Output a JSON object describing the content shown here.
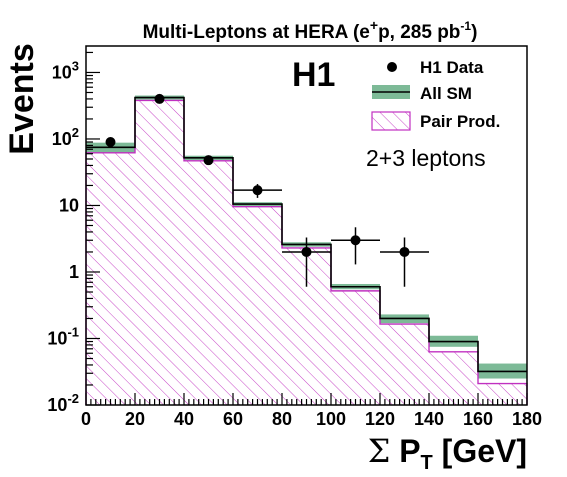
{
  "chart_data": {
    "type": "bar",
    "title_parts": {
      "main": "Multi-Leptons at HERA (e",
      "sup1": "+",
      "mid": "p, 285 pb",
      "sup2": "-1",
      "end": ")"
    },
    "experiment_label": "H1",
    "channel_label": "2+3 leptons",
    "ylabel": "Events",
    "xlabel_parts": {
      "sigma": "Σ",
      "p": "P",
      "sub": "T",
      "unit": " [GeV]"
    },
    "y_scale": "log",
    "ylim": [
      0.01,
      2500
    ],
    "xlim": [
      0,
      180
    ],
    "x_ticks": [
      "0",
      "20",
      "40",
      "60",
      "80",
      "100",
      "120",
      "140",
      "160",
      "180"
    ],
    "x_tick_values": [
      0,
      20,
      40,
      60,
      80,
      100,
      120,
      140,
      160,
      180
    ],
    "y_ticks": [
      {
        "value": 1000,
        "base": "10",
        "exp": "3"
      },
      {
        "value": 100,
        "base": "10",
        "exp": "2"
      },
      {
        "value": 10,
        "base": "10",
        "exp": ""
      },
      {
        "value": 1,
        "base": "1",
        "exp": ""
      },
      {
        "value": 0.1,
        "base": "10",
        "exp": "-1"
      },
      {
        "value": 0.01,
        "base": "10",
        "exp": "-2"
      }
    ],
    "bin_edges": [
      0,
      20,
      40,
      60,
      80,
      100,
      120,
      140,
      160,
      180
    ],
    "all_sm": [
      75,
      420,
      52,
      10.5,
      2.6,
      0.6,
      0.2,
      0.09,
      0.032
    ],
    "all_sm_band_low": [
      62,
      390,
      48,
      9.8,
      2.4,
      0.55,
      0.17,
      0.075,
      0.025
    ],
    "all_sm_band_high": [
      88,
      450,
      56,
      11.2,
      2.8,
      0.66,
      0.23,
      0.11,
      0.042
    ],
    "pair_prod": [
      62,
      380,
      47,
      9.6,
      2.3,
      0.52,
      0.165,
      0.063,
      0.021
    ],
    "data_points": [
      {
        "x": 10,
        "y": 90,
        "ylow": 80,
        "yhigh": 100,
        "xerr": 0
      },
      {
        "x": 30,
        "y": 400,
        "ylow": 380,
        "yhigh": 420,
        "xerr": 0
      },
      {
        "x": 50,
        "y": 48,
        "ylow": 41,
        "yhigh": 55,
        "xerr": 0
      },
      {
        "x": 70,
        "y": 17,
        "ylow": 13,
        "yhigh": 21,
        "xerr": 10
      },
      {
        "x": 90,
        "y": 2,
        "ylow": 0.6,
        "yhigh": 3.3,
        "xerr": 10
      },
      {
        "x": 110,
        "y": 3,
        "ylow": 1.3,
        "yhigh": 4.7,
        "xerr": 10
      },
      {
        "x": 130,
        "y": 2,
        "ylow": 0.6,
        "yhigh": 3.3,
        "xerr": 10
      }
    ],
    "legend": {
      "position": "top-right",
      "entries": [
        {
          "label": "H1 Data",
          "style": "marker"
        },
        {
          "label": "All SM",
          "style": "band"
        },
        {
          "label": "Pair Prod.",
          "style": "hatched"
        }
      ]
    },
    "colors": {
      "band": "#7dba97",
      "pair_stroke": "#c030c0",
      "pair_hatch": "#c848c8",
      "line": "#000000"
    }
  }
}
